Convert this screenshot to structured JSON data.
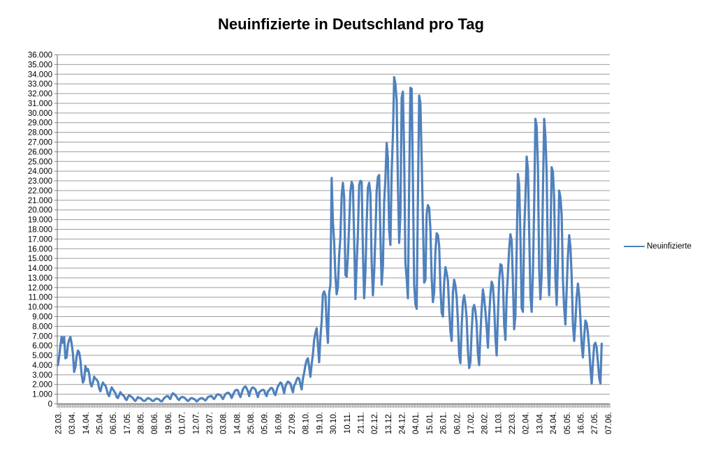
{
  "title": "Neuinfizierte in Deutschland pro Tag",
  "legend": {
    "label": "Neuinfizierte",
    "color": "#4F81BD",
    "position": "right"
  },
  "colors": {
    "series_line": "#4F81BD",
    "gridline": "#9c9c9c",
    "axis_line": "#7f7f7f",
    "tick": "#7f7f7f",
    "label_text": "#000000",
    "background": "#ffffff"
  },
  "chart_data": {
    "type": "line",
    "title": "Neuinfizierte in Deutschland pro Tag",
    "xlabel": "",
    "ylabel": "",
    "ylim": [
      0,
      36000
    ],
    "y_step": 1000,
    "grid": true,
    "legend_position": "right",
    "y_tick_labels": [
      "36.000",
      "35.000",
      "34.000",
      "33.000",
      "32.000",
      "31.000",
      "30.000",
      "29.000",
      "28.000",
      "27.000",
      "26.000",
      "25.000",
      "24.000",
      "23.000",
      "22.000",
      "21.000",
      "20.000",
      "19.000",
      "18.000",
      "17.000",
      "16.000",
      "15.000",
      "14.000",
      "13.000",
      "12.000",
      "11.000",
      "10.000",
      "9.000",
      "8.000",
      "7.000",
      "6.000",
      "5.000",
      "4.000",
      "3.000",
      "2.000",
      "1.000",
      "0"
    ],
    "x_tick_labels": [
      "23.03.",
      "03.04.",
      "14.04.",
      "25.04.",
      "06.05.",
      "17.05.",
      "28.05.",
      "08.06.",
      "19.06.",
      "01.07.",
      "12.07.",
      "23.07.",
      "03.08.",
      "14.08.",
      "25.08.",
      "05.09.",
      "16.09.",
      "27.09.",
      "08.10.",
      "19.10.",
      "30.10.",
      "10.11.",
      "21.11.",
      "02.12.",
      "13.12.",
      "24.12.",
      "04.01.",
      "15.01.",
      "26.01.",
      "06.02.",
      "17.02.",
      "28.02.",
      "11.03.",
      "22.03.",
      "02.04.",
      "13.04.",
      "24.04.",
      "05.05.",
      "16.05.",
      "27.05.",
      "07.06."
    ],
    "x_tick_interval_days": 11,
    "x_axis_total_days": 442,
    "series": [
      {
        "name": "Neuinfizierte",
        "color": "#4F81BD",
        "start_date": "23.03.2020",
        "values": [
          4000,
          4900,
          6000,
          6900,
          6300,
          6900,
          4700,
          4800,
          6100,
          6600,
          6900,
          6200,
          5200,
          3300,
          3800,
          4900,
          5500,
          5300,
          4500,
          3000,
          2200,
          2500,
          3900,
          3400,
          3600,
          3100,
          2100,
          1800,
          2200,
          2800,
          2600,
          2500,
          2300,
          1600,
          1300,
          1800,
          2200,
          2000,
          1900,
          1500,
          1000,
          800,
          1300,
          1700,
          1500,
          1300,
          1100,
          700,
          600,
          900,
          1200,
          1000,
          900,
          800,
          500,
          400,
          700,
          900,
          800,
          700,
          600,
          400,
          300,
          500,
          700,
          600,
          600,
          500,
          350,
          300,
          350,
          500,
          600,
          550,
          500,
          350,
          300,
          350,
          500,
          550,
          500,
          450,
          300,
          250,
          400,
          600,
          700,
          800,
          800,
          600,
          500,
          900,
          1100,
          1000,
          900,
          700,
          500,
          400,
          600,
          700,
          700,
          650,
          550,
          400,
          300,
          400,
          550,
          600,
          550,
          500,
          400,
          250,
          350,
          500,
          550,
          600,
          550,
          450,
          350,
          500,
          700,
          750,
          800,
          800,
          600,
          500,
          700,
          900,
          1000,
          950,
          900,
          700,
          500,
          750,
          1000,
          1100,
          1150,
          1100,
          900,
          600,
          900,
          1200,
          1400,
          1450,
          1400,
          1000,
          700,
          1100,
          1500,
          1700,
          1800,
          1600,
          1300,
          800,
          1300,
          1600,
          1700,
          1600,
          1500,
          1100,
          700,
          1200,
          1300,
          1400,
          1450,
          1400,
          1000,
          800,
          1300,
          1400,
          1600,
          1650,
          1500,
          1100,
          900,
          1400,
          1800,
          2000,
          2200,
          2100,
          1600,
          1100,
          1800,
          2100,
          2300,
          2200,
          2100,
          1600,
          1200,
          1900,
          2100,
          2500,
          2700,
          2600,
          2000,
          1500,
          2600,
          3200,
          4000,
          4500,
          4700,
          3800,
          2800,
          4100,
          5100,
          6600,
          7300,
          7800,
          6100,
          4300,
          6900,
          8500,
          11300,
          11600,
          11200,
          8200,
          6300,
          11400,
          12300,
          23300,
          18700,
          16700,
          13200,
          11300,
          12100,
          15300,
          17200,
          21500,
          22800,
          21300,
          13300,
          13100,
          15300,
          18500,
          21900,
          22900,
          22500,
          16900,
          10800,
          14400,
          17600,
          22600,
          23000,
          22900,
          15700,
          10900,
          13600,
          18600,
          22300,
          22800,
          21700,
          14600,
          11200,
          13600,
          17300,
          22000,
          23400,
          23600,
          17300,
          12300,
          14200,
          20800,
          23200,
          26900,
          25300,
          17900,
          16400,
          23900,
          27700,
          33700,
          33000,
          31300,
          22700,
          16600,
          19500,
          31600,
          32200,
          25500,
          14500,
          13000,
          10900,
          22500,
          32600,
          32500,
          22900,
          12300,
          10300,
          9800,
          21200,
          31800,
          31000,
          25200,
          19000,
          12500,
          12800,
          19600,
          20500,
          20200,
          18000,
          13000,
          10500,
          11500,
          15700,
          17600,
          17400,
          16300,
          12000,
          9400,
          9000,
          12500,
          14100,
          13500,
          12700,
          9800,
          7500,
          6500,
          11500,
          12800,
          12200,
          11000,
          8500,
          5000,
          4200,
          8000,
          10500,
          11200,
          10300,
          8800,
          5500,
          3700,
          4300,
          7500,
          9800,
          10200,
          9600,
          8200,
          5200,
          4000,
          7200,
          9800,
          11800,
          10900,
          9500,
          7900,
          5800,
          9000,
          11300,
          12600,
          12200,
          10100,
          6800,
          5000,
          9100,
          12700,
          14400,
          14300,
          12700,
          8200,
          6600,
          11000,
          13400,
          16000,
          17500,
          16800,
          12600,
          7700,
          9100,
          15800,
          23700,
          22600,
          17300,
          9900,
          9500,
          17800,
          21200,
          25500,
          24200,
          17800,
          11200,
          9500,
          13500,
          20400,
          29400,
          28600,
          24500,
          13900,
          10800,
          13300,
          21800,
          29400,
          27600,
          23800,
          14300,
          11200,
          16500,
          24400,
          23900,
          21200,
          12900,
          10200,
          14800,
          22000,
          21300,
          19500,
          12800,
          9900,
          8200,
          11800,
          15300,
          17400,
          16200,
          13100,
          8200,
          6500,
          8500,
          11000,
          12400,
          11200,
          8800,
          6100,
          4800,
          6900,
          8600,
          8300,
          7300,
          5700,
          3700,
          2100,
          4200,
          6100,
          6300,
          5800,
          4300,
          2700,
          2100,
          6200
        ]
      }
    ]
  }
}
